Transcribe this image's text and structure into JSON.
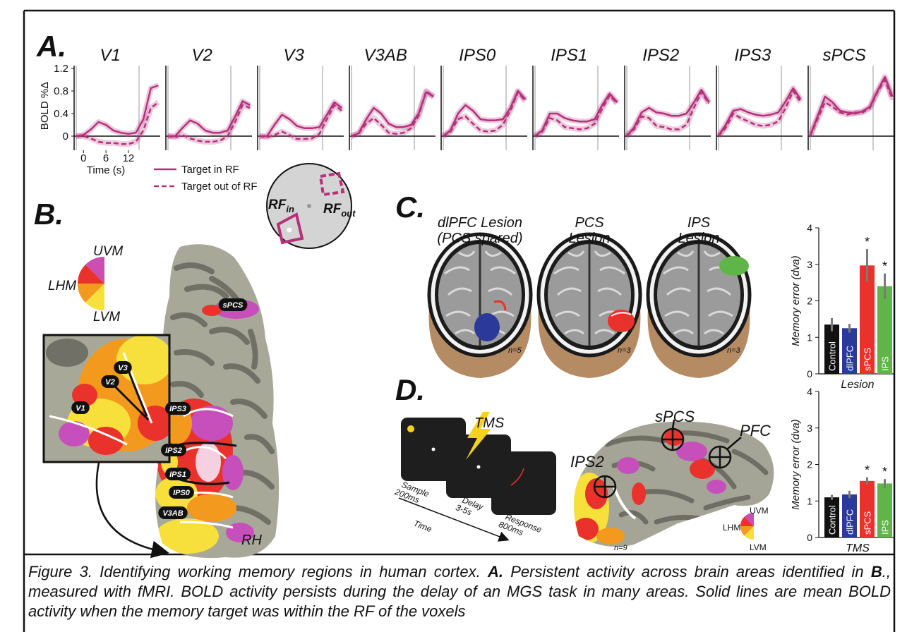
{
  "panel_labels": {
    "a": "A.",
    "b": "B.",
    "c": "C.",
    "d": "D."
  },
  "panel_a": {
    "ylabel": "BOLD %Δ",
    "xlabel": "Time (s)",
    "color": "#b5317a",
    "x": [
      -2,
      0,
      2,
      4,
      6,
      8,
      10,
      12,
      14,
      16,
      18,
      20
    ],
    "xlim": [
      -2.5,
      20.5
    ],
    "ylim": [
      -0.25,
      1.2
    ],
    "xticks": [
      0,
      6,
      12
    ],
    "yticks": [
      0,
      0.4,
      0.8,
      1.2
    ],
    "series": [
      {
        "name": "Target in RF",
        "dash": false
      },
      {
        "name": "Target out of RF",
        "dash": true
      }
    ],
    "regions": [
      {
        "name": "V1",
        "values": [
          [
            0,
            0.02,
            0.12,
            0.25,
            0.2,
            0.1,
            0.06,
            0.04,
            0.06,
            0.3,
            0.85,
            0.9
          ],
          [
            0,
            0,
            -0.04,
            -0.1,
            -0.12,
            -0.12,
            -0.14,
            -0.14,
            -0.1,
            0.1,
            0.5,
            0.6
          ]
        ]
      },
      {
        "name": "V2",
        "values": [
          [
            0,
            0,
            0.15,
            0.28,
            0.22,
            0.1,
            0.06,
            0.06,
            0.1,
            0.35,
            0.62,
            0.55
          ],
          [
            0,
            -0.02,
            0.02,
            -0.04,
            -0.08,
            -0.1,
            -0.1,
            -0.08,
            0,
            0.25,
            0.55,
            0.5
          ]
        ]
      },
      {
        "name": "V3",
        "values": [
          [
            0,
            0,
            0.2,
            0.38,
            0.3,
            0.18,
            0.14,
            0.14,
            0.16,
            0.38,
            0.6,
            0.5
          ],
          [
            0,
            -0.02,
            0.02,
            0.08,
            0.02,
            -0.05,
            -0.05,
            -0.04,
            0.04,
            0.3,
            0.55,
            0.45
          ]
        ]
      },
      {
        "name": "V3AB",
        "values": [
          [
            0,
            0.05,
            0.3,
            0.5,
            0.4,
            0.22,
            0.16,
            0.16,
            0.2,
            0.4,
            0.78,
            0.7
          ],
          [
            0,
            0.05,
            0.22,
            0.32,
            0.2,
            0.06,
            0.04,
            0.06,
            0.14,
            0.36,
            0.8,
            0.7
          ]
        ]
      },
      {
        "name": "IPS0",
        "values": [
          [
            0,
            0.1,
            0.4,
            0.55,
            0.45,
            0.3,
            0.28,
            0.28,
            0.3,
            0.5,
            0.8,
            0.65
          ],
          [
            0,
            0.08,
            0.3,
            0.35,
            0.22,
            0.1,
            0.08,
            0.1,
            0.2,
            0.45,
            0.78,
            0.62
          ]
        ]
      },
      {
        "name": "IPS1",
        "values": [
          [
            0,
            0.1,
            0.4,
            0.4,
            0.32,
            0.28,
            0.26,
            0.26,
            0.3,
            0.55,
            0.75,
            0.6
          ],
          [
            0,
            0.08,
            0.32,
            0.28,
            0.16,
            0.14,
            0.12,
            0.14,
            0.22,
            0.48,
            0.72,
            0.58
          ]
        ]
      },
      {
        "name": "IPS2",
        "values": [
          [
            0,
            0.15,
            0.42,
            0.5,
            0.42,
            0.4,
            0.36,
            0.36,
            0.4,
            0.6,
            0.82,
            0.6
          ],
          [
            0,
            0.12,
            0.35,
            0.32,
            0.18,
            0.16,
            0.12,
            0.12,
            0.2,
            0.5,
            0.78,
            0.58
          ]
        ]
      },
      {
        "name": "IPS3",
        "values": [
          [
            0,
            0.2,
            0.45,
            0.48,
            0.42,
            0.38,
            0.36,
            0.38,
            0.42,
            0.62,
            0.85,
            0.65
          ],
          [
            0,
            0.15,
            0.4,
            0.32,
            0.26,
            0.2,
            0.18,
            0.2,
            0.26,
            0.5,
            0.8,
            0.6
          ]
        ]
      },
      {
        "name": "sPCS",
        "values": [
          [
            0,
            0.35,
            0.7,
            0.6,
            0.45,
            0.42,
            0.4,
            0.44,
            0.52,
            0.8,
            1.05,
            0.7
          ],
          [
            0,
            0.3,
            0.6,
            0.52,
            0.42,
            0.38,
            0.42,
            0.42,
            0.5,
            0.78,
            1.0,
            0.65
          ]
        ]
      }
    ]
  },
  "rf_schematic": {
    "rf_in": {
      "main": "RF",
      "sub": "in"
    },
    "rf_out": {
      "main": "RF",
      "sub": "out"
    }
  },
  "panel_b": {
    "hemifield": {
      "upper": "UVM",
      "horizontal": "LHM",
      "lower": "LVM"
    },
    "hemisphere": "RH",
    "regions": [
      "sPCS",
      "IPS3",
      "IPS2",
      "IPS1",
      "IPS0",
      "V3AB"
    ],
    "inset_regions": [
      "V1",
      "V2",
      "V3"
    ]
  },
  "panel_c": {
    "lesions": [
      {
        "title": [
          "dlPFC Lesion",
          "(PCS spared)"
        ],
        "n": "n=5"
      },
      {
        "title": [
          "PCS",
          "Lesion"
        ],
        "n": "n=3"
      },
      {
        "title": [
          "IPS",
          "Lesion"
        ],
        "n": "n=3"
      }
    ],
    "chart": {
      "type": "bar",
      "ylabel": "Memory error (dva)",
      "xlabel": "Lesion",
      "categories": [
        "Control",
        "dlPFC",
        "sPCS",
        "IPS"
      ],
      "values": [
        1.35,
        1.25,
        2.97,
        2.4
      ],
      "errors": [
        0.18,
        0.12,
        0.45,
        0.35
      ],
      "colors": [
        "#111111",
        "#2b3a9a",
        "#e8322b",
        "#5fb548"
      ],
      "annotations": [
        null,
        null,
        "*",
        "*"
      ],
      "ylim": [
        0,
        4
      ],
      "yticks": [
        0,
        1,
        2,
        3,
        4
      ]
    }
  },
  "panel_d": {
    "tms": "TMS",
    "epochs": [
      {
        "name": "Sample",
        "duration": "200ms"
      },
      {
        "name": "Delay",
        "duration": "3-5s"
      },
      {
        "name": "Response",
        "duration": "800ms"
      }
    ],
    "time": "Time",
    "sites": [
      "IPS2",
      "sPCS",
      "PFC"
    ],
    "n": "n=9",
    "hemifield": {
      "upper": "UVM",
      "horizontal": "LHM",
      "lower": "LVM"
    },
    "chart": {
      "type": "bar",
      "ylabel": "Memory error (dva)",
      "xlabel": "TMS",
      "categories": [
        "Control",
        "dlPFC",
        "sPCS",
        "IPS"
      ],
      "values": [
        1.1,
        1.18,
        1.55,
        1.48
      ],
      "errors": [
        0.07,
        0.1,
        0.1,
        0.12
      ],
      "colors": [
        "#111111",
        "#2b3a9a",
        "#e8322b",
        "#5fb548"
      ],
      "annotations": [
        null,
        null,
        "*",
        "*"
      ],
      "ylim": [
        0,
        4
      ],
      "yticks": [
        0,
        1,
        2,
        3,
        4
      ]
    }
  },
  "caption": [
    {
      "text": "Figure 3. Identifying working memory regions in human cortex. ",
      "bold": false
    },
    {
      "text": "A.",
      "bold": true
    },
    {
      "text": " Persistent activity across brain areas identified in ",
      "bold": false
    },
    {
      "text": "B",
      "bold": true
    },
    {
      "text": "., measured with fMRI. BOLD activity persists during the delay of an MGS task in many areas. Solid lines are mean BOLD activity when the memory target was within the RF of the voxels",
      "bold": false
    }
  ]
}
